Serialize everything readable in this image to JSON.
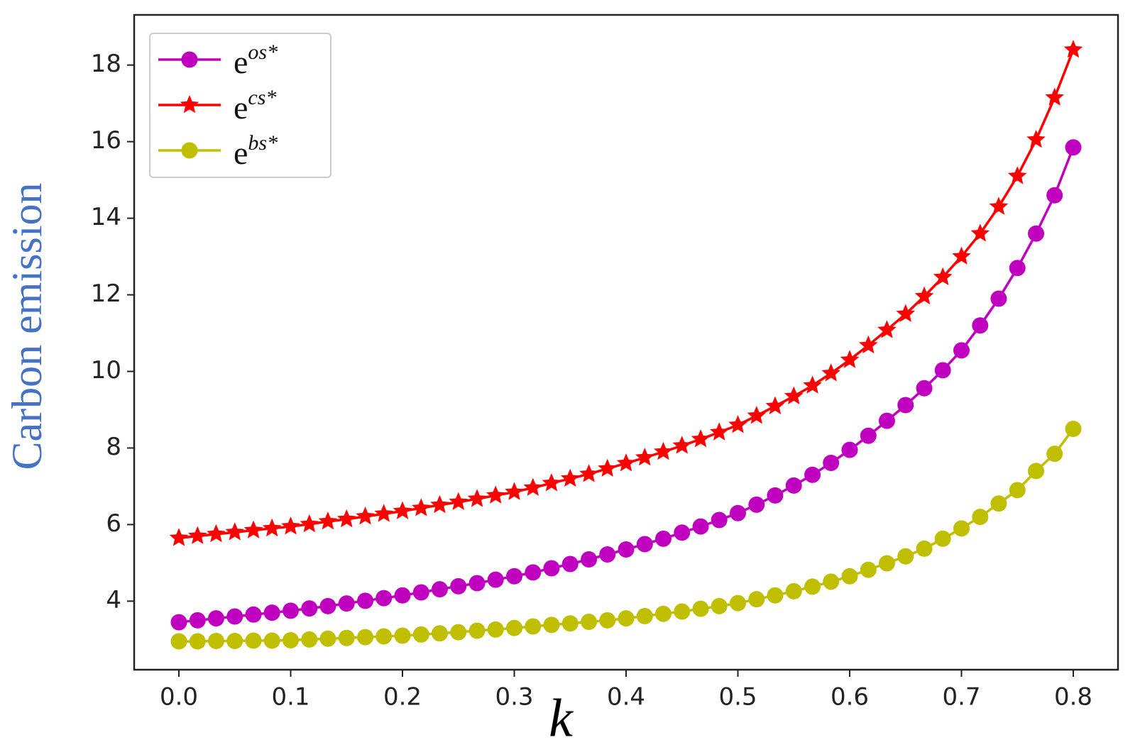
{
  "chart_data": {
    "type": "line",
    "xlabel": "k",
    "ylabel": "Carbon emission",
    "x": [
      0,
      0.0167,
      0.0333,
      0.05,
      0.0667,
      0.0833,
      0.1,
      0.1167,
      0.1333,
      0.15,
      0.1667,
      0.1833,
      0.2,
      0.2167,
      0.2333,
      0.25,
      0.2667,
      0.2833,
      0.3,
      0.3167,
      0.3333,
      0.35,
      0.3667,
      0.3833,
      0.4,
      0.4167,
      0.4333,
      0.45,
      0.4667,
      0.4833,
      0.5,
      0.5167,
      0.5333,
      0.55,
      0.5667,
      0.5833,
      0.6,
      0.6167,
      0.6333,
      0.65,
      0.6667,
      0.6833,
      0.7,
      0.7167,
      0.7333,
      0.75,
      0.7667,
      0.7833,
      0.8
    ],
    "series": [
      {
        "name": "eos*",
        "color": "#bf00bf",
        "marker": "o",
        "values": [
          3.45,
          3.5,
          3.55,
          3.6,
          3.65,
          3.7,
          3.75,
          3.81,
          3.87,
          3.94,
          4.01,
          4.08,
          4.15,
          4.23,
          4.31,
          4.39,
          4.47,
          4.56,
          4.65,
          4.75,
          4.86,
          4.97,
          5.09,
          5.22,
          5.35,
          5.49,
          5.63,
          5.79,
          5.95,
          6.12,
          6.3,
          6.52,
          6.76,
          7.02,
          7.3,
          7.61,
          7.95,
          8.32,
          8.71,
          9.12,
          9.56,
          10.03,
          10.55,
          11.2,
          11.9,
          12.7,
          13.6,
          14.6,
          15.85
        ]
      },
      {
        "name": "ecs*",
        "color": "#ff0000",
        "marker": "*",
        "values": [
          5.65,
          5.7,
          5.75,
          5.8,
          5.85,
          5.9,
          5.95,
          6.01,
          6.08,
          6.14,
          6.21,
          6.28,
          6.35,
          6.43,
          6.51,
          6.59,
          6.67,
          6.76,
          6.85,
          6.96,
          7.08,
          7.2,
          7.32,
          7.46,
          7.6,
          7.75,
          7.9,
          8.06,
          8.23,
          8.41,
          8.6,
          8.84,
          9.09,
          9.35,
          9.63,
          9.95,
          10.3,
          10.68,
          11.08,
          11.5,
          11.96,
          12.46,
          13.0,
          13.6,
          14.3,
          15.1,
          16.05,
          17.15,
          18.4
        ]
      },
      {
        "name": "ebs*",
        "color": "#bfbf00",
        "marker": "o",
        "values": [
          2.95,
          2.95,
          2.96,
          2.96,
          2.97,
          2.97,
          2.98,
          3.0,
          3.02,
          3.04,
          3.06,
          3.08,
          3.1,
          3.13,
          3.16,
          3.19,
          3.23,
          3.26,
          3.3,
          3.34,
          3.38,
          3.42,
          3.46,
          3.5,
          3.55,
          3.61,
          3.67,
          3.73,
          3.8,
          3.87,
          3.95,
          4.05,
          4.15,
          4.26,
          4.38,
          4.51,
          4.65,
          4.82,
          4.99,
          5.17,
          5.37,
          5.63,
          5.9,
          6.2,
          6.55,
          6.9,
          7.4,
          7.85,
          8.5
        ]
      }
    ],
    "xlim": [
      -0.04,
      0.84
    ],
    "ylim": [
      2.21,
      19.31
    ],
    "xticks": [
      {
        "value": 0,
        "label": "0.0"
      },
      0.1,
      0.2,
      0.3,
      0.4,
      0.5,
      0.6,
      0.7,
      0.8
    ],
    "yticks": [
      4,
      6,
      8,
      10,
      12,
      14,
      16,
      18
    ],
    "grid": false,
    "legend": "upper left"
  }
}
